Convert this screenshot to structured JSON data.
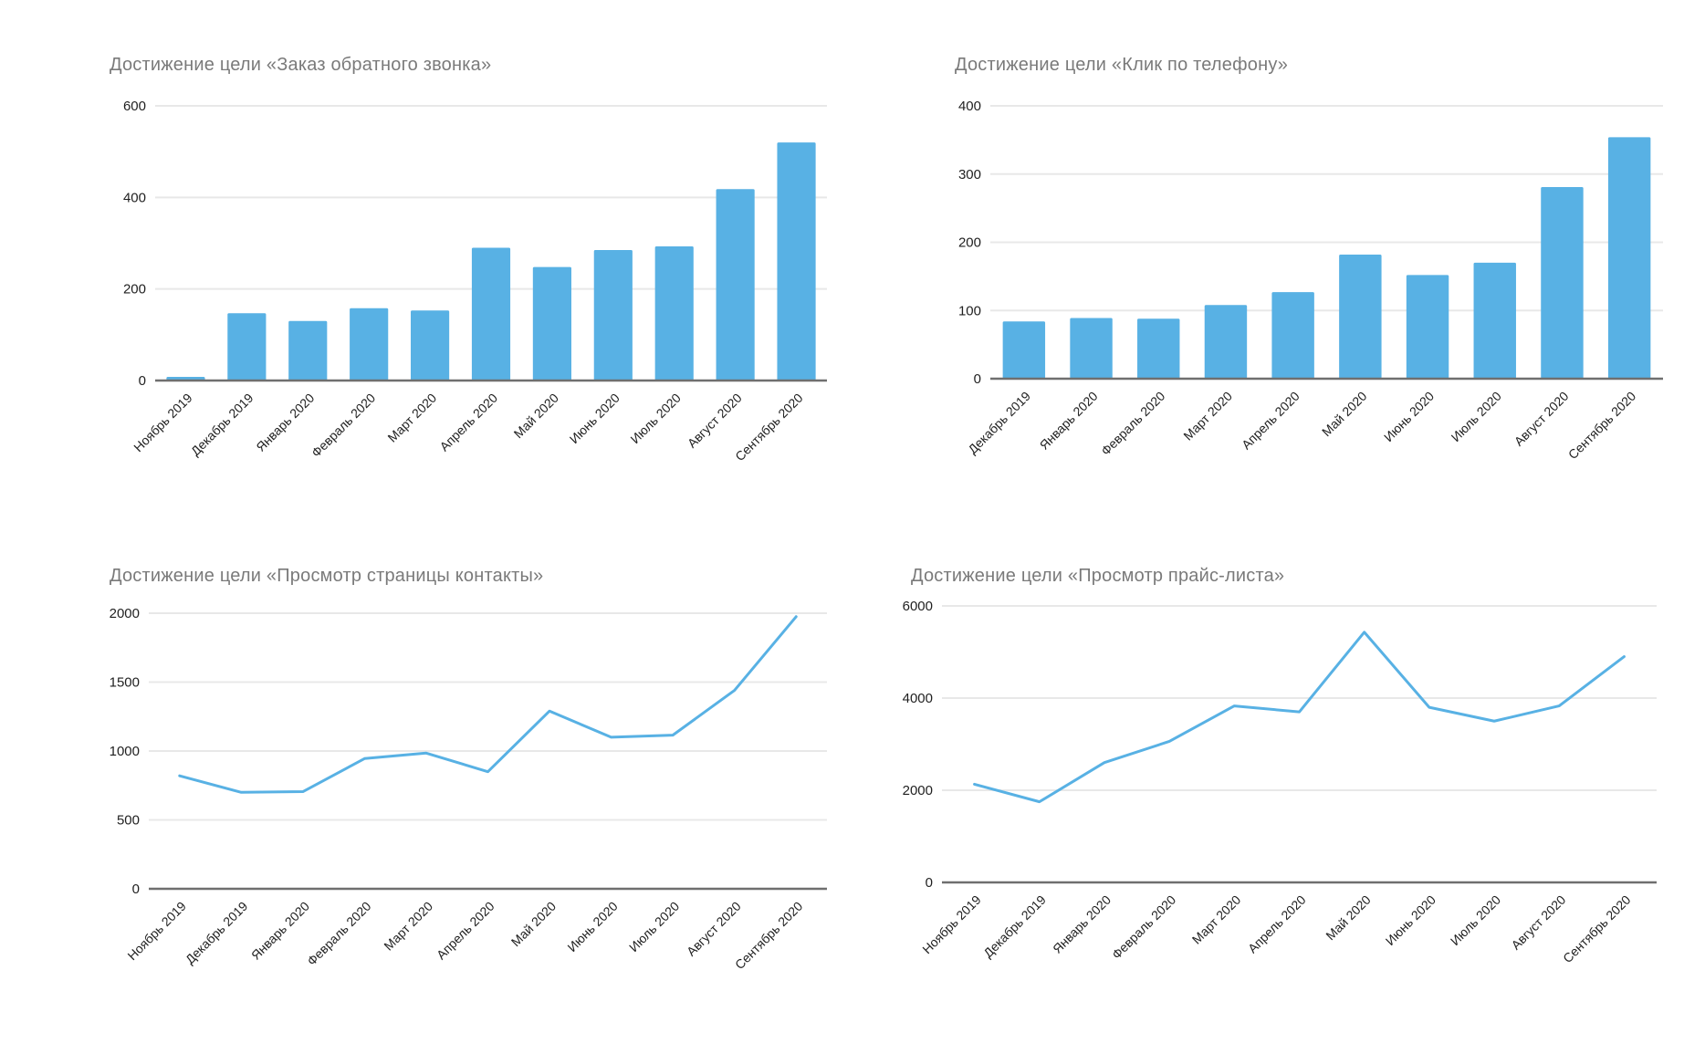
{
  "page": {
    "background": "#ffffff"
  },
  "style": {
    "series_color": "#58b1e4",
    "gridline_color": "#e8e8e8",
    "axis_line_color": "#6f6f6f",
    "tick_label_color": "#1f1f1f",
    "title_color": "#7a7a7a"
  },
  "chart_data": [
    {
      "type": "bar",
      "title": "Достижение цели «Заказ обратного звонка»",
      "categories": [
        "Ноябрь 2019",
        "Декабрь 2019",
        "Январь 2020",
        "Февраль 2020",
        "Март 2020",
        "Апрель 2020",
        "Май 2020",
        "Июнь 2020",
        "Июль 2020",
        "Август 2020",
        "Сентябрь 2020"
      ],
      "values": [
        8,
        147,
        130,
        158,
        153,
        290,
        248,
        285,
        293,
        418,
        520
      ],
      "ylim": [
        0,
        600
      ],
      "yticks": [
        0,
        200,
        400,
        600
      ],
      "xlabel": "",
      "ylabel": "",
      "grid": true,
      "legend": "none",
      "color": "#58b1e4"
    },
    {
      "type": "bar",
      "title": "Достижение цели «Клик по телефону»",
      "categories": [
        "Декабрь 2019",
        "Январь 2020",
        "Февраль 2020",
        "Март 2020",
        "Апрель 2020",
        "Май 2020",
        "Июнь 2020",
        "Июль 2020",
        "Август 2020",
        "Сентябрь 2020"
      ],
      "values": [
        84,
        89,
        88,
        108,
        127,
        182,
        152,
        170,
        281,
        354
      ],
      "ylim": [
        0,
        400
      ],
      "yticks": [
        0,
        100,
        200,
        300,
        400
      ],
      "xlabel": "",
      "ylabel": "",
      "grid": true,
      "legend": "none",
      "color": "#58b1e4"
    },
    {
      "type": "line",
      "title": "Достижение цели «Просмотр страницы контакты»",
      "categories": [
        "Ноябрь 2019",
        "Декабрь 2019",
        "Январь 2020",
        "Февраль 2020",
        "Март 2020",
        "Апрель 2020",
        "Май 2020",
        "Июнь 2020",
        "Июль 2020",
        "Август 2020",
        "Сентябрь 2020"
      ],
      "values": [
        820,
        700,
        705,
        945,
        985,
        850,
        1290,
        1100,
        1115,
        1440,
        1975
      ],
      "ylim": [
        0,
        2000
      ],
      "yticks": [
        0,
        500,
        1000,
        1500,
        2000
      ],
      "xlabel": "",
      "ylabel": "",
      "grid": true,
      "legend": "none",
      "color": "#58b1e4"
    },
    {
      "type": "line",
      "title": "Достижение цели «Просмотр прайс-листа»",
      "categories": [
        "Ноябрь 2019",
        "Декабрь 2019",
        "Январь 2020",
        "Февраль 2020",
        "Март 2020",
        "Апрель 2020",
        "Май 2020",
        "Июнь 2020",
        "Июль 2020",
        "Август 2020",
        "Сентябрь 2020"
      ],
      "values": [
        2130,
        1750,
        2600,
        3060,
        3830,
        3700,
        5430,
        3800,
        3500,
        3830,
        4900
      ],
      "ylim": [
        0,
        6000
      ],
      "yticks": [
        0,
        2000,
        4000,
        6000
      ],
      "xlabel": "",
      "ylabel": "",
      "grid": true,
      "legend": "none",
      "color": "#58b1e4"
    }
  ]
}
